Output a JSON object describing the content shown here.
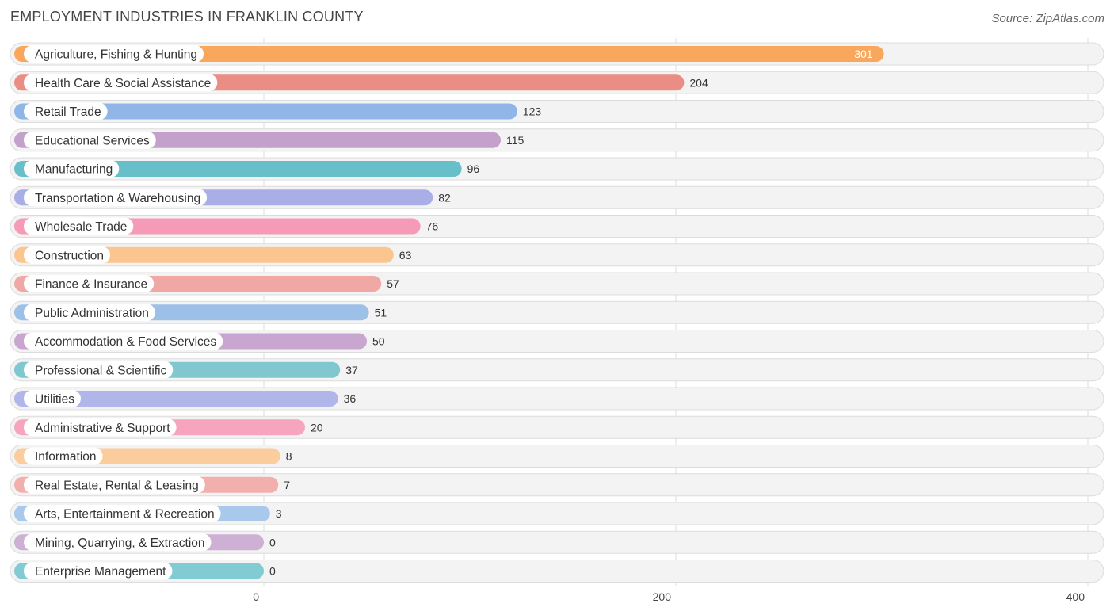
{
  "chart_data": {
    "type": "bar",
    "orientation": "horizontal",
    "title": "EMPLOYMENT INDUSTRIES IN FRANKLIN COUNTY",
    "source": "Source: ZipAtlas.com",
    "xlabel": "",
    "ylabel": "",
    "xlim": [
      0,
      400
    ],
    "ticks": [
      0,
      200,
      400
    ],
    "grid": true,
    "categories": [
      "Agriculture, Fishing & Hunting",
      "Health Care & Social Assistance",
      "Retail Trade",
      "Educational Services",
      "Manufacturing",
      "Transportation & Warehousing",
      "Wholesale Trade",
      "Construction",
      "Finance & Insurance",
      "Public Administration",
      "Accommodation & Food Services",
      "Professional & Scientific",
      "Utilities",
      "Administrative & Support",
      "Information",
      "Real Estate, Rental & Leasing",
      "Arts, Entertainment & Recreation",
      "Mining, Quarrying, & Extraction",
      "Enterprise Management"
    ],
    "values": [
      301,
      204,
      123,
      115,
      96,
      82,
      76,
      63,
      57,
      51,
      50,
      37,
      36,
      20,
      8,
      7,
      3,
      0,
      0
    ],
    "colors": [
      "#f9a75d",
      "#e98d85",
      "#8fb6e6",
      "#c3a1cb",
      "#66bfc9",
      "#a9aee6",
      "#f69bb7",
      "#fbc58f",
      "#f0a8a5",
      "#9dc0e8",
      "#c8a6cf",
      "#7fc8cf",
      "#b1b6ea",
      "#f7a5bf",
      "#fbcd9c",
      "#f2b0ad",
      "#a8c8ec",
      "#cdb0d4",
      "#82cbd2"
    ]
  }
}
